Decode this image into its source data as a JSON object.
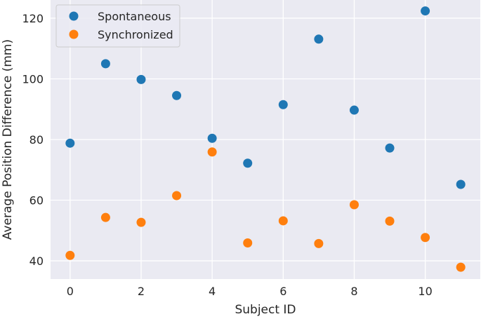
{
  "chart_data": {
    "type": "scatter",
    "title": "",
    "xlabel": "Subject ID",
    "ylabel": "Average Position Difference (mm)",
    "xlim": [
      -0.55,
      11.55
    ],
    "ylim": [
      34,
      126
    ],
    "xticks": [
      0,
      2,
      4,
      6,
      8,
      10
    ],
    "yticks": [
      40,
      60,
      80,
      100,
      120
    ],
    "grid": true,
    "legend": "top-left",
    "x": [
      0,
      1,
      2,
      3,
      4,
      5,
      6,
      7,
      8,
      9,
      10,
      11
    ],
    "series": [
      {
        "name": "Spontaneous",
        "color": "#1f77b4",
        "values": [
          78.8,
          105.0,
          99.8,
          94.5,
          80.4,
          72.2,
          91.5,
          113.1,
          89.7,
          77.2,
          122.4,
          65.2
        ]
      },
      {
        "name": "Synchronized",
        "color": "#ff7f0e",
        "values": [
          41.8,
          54.3,
          52.7,
          61.5,
          75.9,
          45.9,
          53.2,
          45.7,
          58.5,
          53.1,
          47.7,
          37.9
        ]
      }
    ],
    "background_color": "#eaeaf2",
    "grid_color": "#ffffff"
  }
}
